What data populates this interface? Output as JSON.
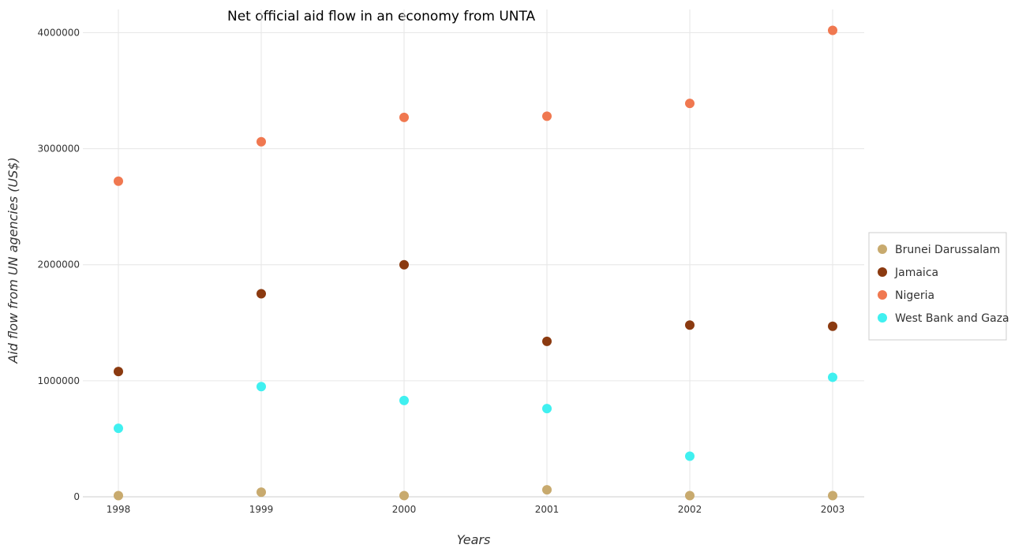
{
  "chart_data": {
    "type": "scatter",
    "title": "Net official aid flow in an economy from UNTA",
    "xlabel": "Years",
    "ylabel": "Aid flow from UN agencies (US$)",
    "categories": [
      "1998",
      "1999",
      "2000",
      "2001",
      "2002",
      "2003"
    ],
    "ylim": [
      0,
      4200000
    ],
    "yticks": [
      0,
      1000000,
      2000000,
      3000000,
      4000000
    ],
    "ytick_labels": [
      "0",
      "1000000",
      "2000000",
      "3000000",
      "4000000"
    ],
    "grid": true,
    "legend_position": "right",
    "series": [
      {
        "name": "Brunei Darussalam",
        "color": "#c8aa6e",
        "values": [
          10000,
          40000,
          10000,
          60000,
          10000,
          10000
        ]
      },
      {
        "name": "Jamaica",
        "color": "#8b3a10",
        "values": [
          1080000,
          1750000,
          2000000,
          1340000,
          1480000,
          1470000
        ]
      },
      {
        "name": "Nigeria",
        "color": "#f07850",
        "values": [
          2720000,
          3060000,
          3270000,
          3280000,
          3390000,
          4020000
        ]
      },
      {
        "name": "West Bank and Gaza",
        "color": "#40f0f0",
        "values": [
          590000,
          950000,
          830000,
          760000,
          350000,
          1030000
        ]
      }
    ]
  }
}
